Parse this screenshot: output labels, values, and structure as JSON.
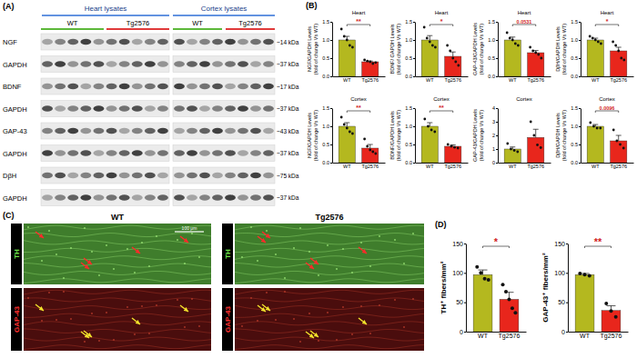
{
  "figure": {
    "panel_labels": [
      "(A)",
      "(B)",
      "(C)",
      "(D)"
    ],
    "blot": {
      "groups": [
        "Heart lysates",
        "Cortex lysates"
      ],
      "conditions": [
        "WT",
        "Tg2576",
        "WT",
        "Tg2576"
      ],
      "rows": [
        {
          "label": "NGF",
          "size": "~14 kDa"
        },
        {
          "label": "GAPDH",
          "size": "~37 kDa"
        },
        {
          "label": "BDNF",
          "size": "~17 kDa"
        },
        {
          "label": "GAPDH",
          "size": "~37 kDa"
        },
        {
          "label": "GAP-43",
          "size": "~43 kDa"
        },
        {
          "label": "GAPDH",
          "size": "~37 kDa"
        },
        {
          "label": "DβH",
          "size": "~75 kDa"
        },
        {
          "label": "GAPDH",
          "size": "~37 kDa"
        }
      ]
    },
    "micrographs": {
      "columns": [
        "WT",
        "Tg2576"
      ],
      "rows": [
        "TH",
        "GAP-43"
      ],
      "scale_bar": "100 μm"
    }
  },
  "chart_data": [
    {
      "type": "bar",
      "title": "Heart",
      "ylabel": "NGF/GAPDH Levels (fold of change Vs WT)",
      "categories": [
        "WT",
        "Tg2576"
      ],
      "values": [
        1.0,
        0.4
      ],
      "errors": [
        0.1,
        0.02
      ],
      "points": [
        [
          1.3,
          1.1,
          1.0,
          0.85,
          0.8
        ],
        [
          0.45,
          0.42,
          0.4,
          0.35,
          0.38
        ]
      ],
      "colors": [
        "#b4b81f",
        "#e8261c"
      ],
      "ylim": [
        0,
        1.5
      ],
      "yticks": [
        {
          "value": 0,
          "label": "0.0"
        },
        0.5,
        {
          "value": 1,
          "label": "1.0"
        },
        1.5
      ],
      "annotation": "**"
    },
    {
      "type": "bar",
      "title": "Heart",
      "ylabel": "BDNF/ GAPDH Levels (fold of change Vs WT)",
      "categories": [
        "WT",
        "Tg2576"
      ],
      "values": [
        1.0,
        0.55
      ],
      "errors": [
        0.12,
        0.12
      ],
      "points": [
        [
          1.35,
          1.05,
          0.95,
          0.85,
          0.8
        ],
        [
          0.85,
          0.7,
          0.5,
          0.4,
          0.3
        ]
      ],
      "colors": [
        "#b4b81f",
        "#e8261c"
      ],
      "ylim": [
        0,
        1.5
      ],
      "yticks": [
        {
          "value": 0,
          "label": "0.0"
        },
        0.5,
        {
          "value": 1,
          "label": "1.0"
        },
        1.5
      ],
      "annotation": "*"
    },
    {
      "type": "bar",
      "title": "Heart",
      "ylabel": "GAP-43/GAPDH Levels (fold of change Vs WT)",
      "categories": [
        "WT",
        "Tg2576"
      ],
      "values": [
        1.0,
        0.65
      ],
      "errors": [
        0.08,
        0.06
      ],
      "points": [
        [
          1.2,
          1.05,
          1.0,
          0.9,
          0.85
        ],
        [
          0.8,
          0.7,
          0.65,
          0.6,
          0.5
        ]
      ],
      "colors": [
        "#b4b81f",
        "#e8261c"
      ],
      "ylim": [
        0,
        1.5
      ],
      "yticks": [
        {
          "value": 0,
          "label": "0.0"
        },
        0.5,
        {
          "value": 1,
          "label": "1.0"
        },
        1.5
      ],
      "annotation": "0.0531"
    },
    {
      "type": "bar",
      "title": "Heart",
      "ylabel": "DβH/GAPDH Levels (fold of change Vs WT)",
      "categories": [
        "WT",
        "Tg2576"
      ],
      "values": [
        1.0,
        0.7
      ],
      "errors": [
        0.05,
        0.1
      ],
      "points": [
        [
          1.1,
          1.05,
          1.0,
          0.95,
          0.9
        ],
        [
          0.95,
          0.85,
          0.7,
          0.5,
          0.45
        ]
      ],
      "colors": [
        "#b4b81f",
        "#e8261c"
      ],
      "ylim": [
        0,
        1.5
      ],
      "yticks": [
        {
          "value": 0,
          "label": "0.0"
        },
        0.5,
        {
          "value": 1,
          "label": "1.0"
        },
        1.5
      ],
      "annotation": "*"
    },
    {
      "type": "bar",
      "title": "Cortex",
      "ylabel": "NGF/GAPDH Levels (fold of change Vs WT)",
      "categories": [
        "WT",
        "Tg2576"
      ],
      "values": [
        1.0,
        0.4
      ],
      "errors": [
        0.1,
        0.1
      ],
      "points": [
        [
          1.25,
          1.05,
          0.95,
          0.85,
          0.8
        ],
        [
          0.65,
          0.45,
          0.35,
          0.3,
          0.25
        ]
      ],
      "colors": [
        "#b4b81f",
        "#e8261c"
      ],
      "ylim": [
        0,
        1.5
      ],
      "yticks": [
        {
          "value": 0,
          "label": "0.0"
        },
        0.5,
        {
          "value": 1,
          "label": "1.0"
        },
        1.5
      ],
      "annotation": "**"
    },
    {
      "type": "bar",
      "title": "Cortex",
      "ylabel": "BDNF/GAPDH Levels (fold of change Vs WT)",
      "categories": [
        "WT",
        "Tg2576"
      ],
      "values": [
        1.0,
        0.45
      ],
      "errors": [
        0.1,
        0.04
      ],
      "points": [
        [
          1.2,
          1.0,
          0.9,
          0.85
        ],
        [
          0.5,
          0.45,
          0.42,
          0.4
        ]
      ],
      "colors": [
        "#b4b81f",
        "#e8261c"
      ],
      "ylim": [
        0,
        1.5
      ],
      "yticks": [
        {
          "value": 0,
          "label": "0.0"
        },
        0.5,
        {
          "value": 1,
          "label": "1.0"
        },
        1.5
      ],
      "annotation": "**"
    },
    {
      "type": "bar",
      "title": "Cortex",
      "ylabel": "GAP-43/GAPDH Levels (fold of change Vs WT)",
      "categories": [
        "WT",
        "Tg2576"
      ],
      "values": [
        1.0,
        1.85
      ],
      "errors": [
        0.15,
        0.6
      ],
      "points": [
        [
          1.4,
          1.0,
          0.9,
          0.8
        ],
        [
          3.0,
          2.0,
          1.3,
          1.1
        ]
      ],
      "colors": [
        "#b4b81f",
        "#e8261c"
      ],
      "ylim": [
        0,
        4
      ],
      "yticks": [
        0,
        1,
        2,
        3,
        4
      ]
    },
    {
      "type": "bar",
      "title": "Cortex",
      "ylabel": "DβH/GAPDH Levels (fold of change Vs WT)",
      "categories": [
        "WT",
        "Tg2576"
      ],
      "values": [
        1.0,
        0.6
      ],
      "errors": [
        0.05,
        0.15
      ],
      "points": [
        [
          1.1,
          1.0,
          0.95,
          0.95
        ],
        [
          0.9,
          0.6,
          0.5,
          0.4
        ]
      ],
      "colors": [
        "#b4b81f",
        "#e8261c"
      ],
      "ylim": [
        0,
        1.5
      ],
      "yticks": [
        {
          "value": 0,
          "label": "0.0"
        },
        0.5,
        {
          "value": 1,
          "label": "1.0"
        },
        1.5
      ],
      "annotation": "0.0096"
    },
    {
      "type": "bar",
      "ylabel": "TH⁺ fibers/mm²",
      "categories": [
        "WT",
        "Tg2576"
      ],
      "values": [
        97,
        55
      ],
      "errors": [
        8,
        12
      ],
      "points": [
        [
          110,
          100,
          90,
          88
        ],
        [
          80,
          68,
          55,
          40,
          32
        ]
      ],
      "colors": [
        "#b4b81f",
        "#e8261c"
      ],
      "ylim": [
        0,
        150
      ],
      "yticks": [
        0,
        50,
        100,
        150
      ],
      "annotation": "*"
    },
    {
      "type": "bar",
      "ylabel": "GAP-43⁺ fibers/mm²",
      "categories": [
        "WT",
        "Tg2576"
      ],
      "values": [
        97,
        36
      ],
      "errors": [
        2,
        8
      ],
      "points": [
        [
          99,
          97,
          95
        ],
        [
          48,
          35,
          25
        ]
      ],
      "colors": [
        "#b4b81f",
        "#e8261c"
      ],
      "ylim": [
        0,
        150
      ],
      "yticks": [
        0,
        50,
        100,
        150
      ],
      "annotation": "**"
    }
  ]
}
